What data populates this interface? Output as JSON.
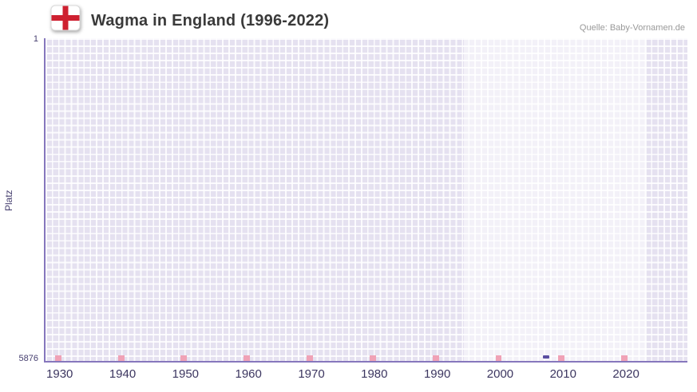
{
  "header": {
    "title": "Wagma in England (1996-2022)",
    "source": "Quelle: Baby-Vornamen.de"
  },
  "chart": {
    "ylabel": "Platz",
    "y_ticks": {
      "top": "1",
      "bottom": "5876"
    }
  },
  "chart_data": {
    "type": "scatter",
    "title": "Wagma in England (1996-2022)",
    "xlabel": "",
    "ylabel": "Platz",
    "y_axis": {
      "min": 1,
      "max": 5876,
      "inverted": true,
      "tick_labels": [
        "1",
        "5876"
      ]
    },
    "x_axis": {
      "range": [
        1927.5,
        2029.5
      ],
      "tick_years": [
        1930,
        1940,
        1950,
        1960,
        1970,
        1980,
        1990,
        2000,
        2010,
        2020
      ]
    },
    "highlight_period": {
      "from": 1994,
      "to": 2023
    },
    "points": [
      {
        "year": 2007,
        "rank": 5876
      }
    ],
    "axis_marks": {
      "years": [
        1929,
        1939,
        1949,
        1959,
        1969,
        1979,
        1989,
        1999,
        2009,
        2019
      ]
    },
    "grid": true,
    "legend": false,
    "colors": {
      "point": "#5a4da1",
      "plot_background": "#e5e1f0",
      "highlight_overlay": "rgba(255,255,255,0.52)",
      "axis_line": "#8677bd",
      "axis_marks": "#f0a2b6",
      "tick_text": "#3c3660",
      "title_text": "#3a3a3a",
      "flag_red": "#ce2030"
    }
  }
}
